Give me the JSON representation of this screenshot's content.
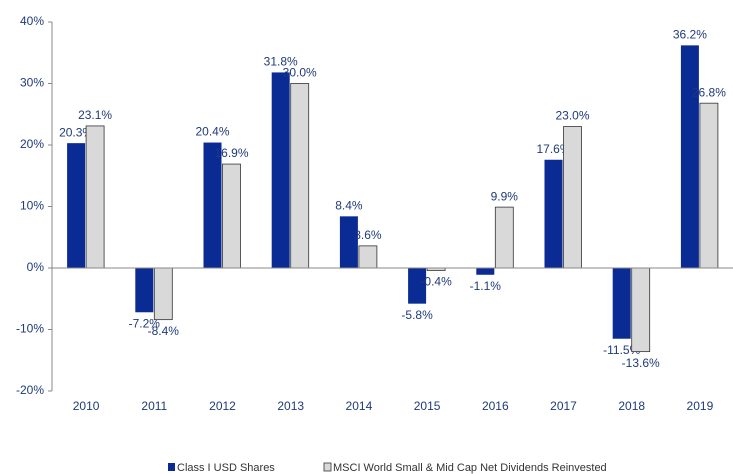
{
  "chart_data": {
    "type": "bar",
    "categories": [
      "2010",
      "2011",
      "2012",
      "2013",
      "2014",
      "2015",
      "2016",
      "2017",
      "2018",
      "2019"
    ],
    "series": [
      {
        "name": "Class I USD Shares",
        "color": "#0a2a94",
        "values": [
          20.3,
          -7.2,
          20.4,
          31.8,
          8.4,
          -5.8,
          -1.1,
          17.6,
          -11.5,
          36.2
        ],
        "value_labels": [
          "20.3%",
          "-7.2%",
          "20.4%",
          "31.8%",
          "8.4%",
          "-5.8%",
          "-1.1%",
          "17.6%",
          "-11.5%",
          "36.2%"
        ]
      },
      {
        "name": "MSCI World Small & Mid Cap Net Dividends Reinvested",
        "color": "#d9d9d9",
        "values": [
          23.1,
          -8.4,
          16.9,
          30.0,
          3.6,
          -0.4,
          9.9,
          23.0,
          -13.6,
          26.8
        ],
        "value_labels": [
          "23.1%",
          "-8.4%",
          "16.9%",
          "30.0%",
          "3.6%",
          "-0.4%",
          "9.9%",
          "23.0%",
          "-13.6%",
          "26.8%"
        ]
      }
    ],
    "ylim": [
      -20,
      40
    ],
    "yticks": [
      {
        "value": -20,
        "label": "-20%"
      },
      {
        "value": -10,
        "label": "-10%"
      },
      {
        "value": 0,
        "label": "0%"
      },
      {
        "value": 10,
        "label": "10%"
      },
      {
        "value": 20,
        "label": "20%"
      },
      {
        "value": 30,
        "label": "30%"
      },
      {
        "value": 40,
        "label": "40%"
      }
    ],
    "legend": "bottom"
  }
}
